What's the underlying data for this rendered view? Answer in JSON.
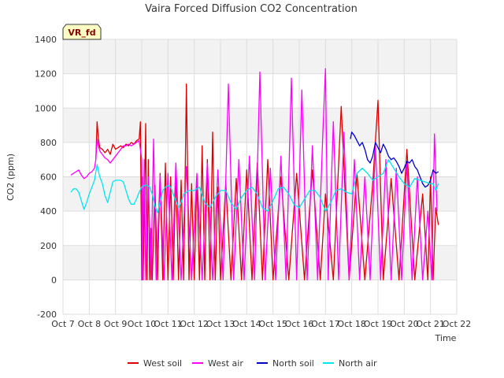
{
  "chart_data": {
    "type": "line",
    "title": "Vaira Forced Diffusion CO2 Concentration",
    "badge": "VR_fd",
    "xlabel": "Time",
    "ylabel": "CO2 (ppm)",
    "ylim": [
      -200,
      1400
    ],
    "yticks": [
      -200,
      0,
      200,
      400,
      600,
      800,
      1000,
      1200,
      1400
    ],
    "xlim": [
      7,
      22
    ],
    "xticks": [
      {
        "value": 7,
        "label": "Oct 7"
      },
      {
        "value": 8,
        "label": "Oct 8"
      },
      {
        "value": 9,
        "label": "Oct 9"
      },
      {
        "value": 10,
        "label": "Oct 10"
      },
      {
        "value": 11,
        "label": "Oct 11"
      },
      {
        "value": 12,
        "label": "Oct 12"
      },
      {
        "value": 13,
        "label": "Oct 13"
      },
      {
        "value": 14,
        "label": "Oct 14"
      },
      {
        "value": 15,
        "label": "Oct 15"
      },
      {
        "value": 16,
        "label": "Oct 16"
      },
      {
        "value": 17,
        "label": "Oct 17"
      },
      {
        "value": 18,
        "label": "Oct 18"
      },
      {
        "value": 19,
        "label": "Oct 19"
      },
      {
        "value": 20,
        "label": "Oct 20"
      },
      {
        "value": 21,
        "label": "Oct 21"
      },
      {
        "value": 22,
        "label": "Oct 22"
      }
    ],
    "grid": true,
    "legend_position": "bottom",
    "series": [
      {
        "name": "West soil",
        "color": "#dd0000",
        "x": [
          8.25,
          8.3,
          8.35,
          8.4,
          8.5,
          8.6,
          8.7,
          8.8,
          8.9,
          9.0,
          9.1,
          9.2,
          9.3,
          9.4,
          9.5,
          9.6,
          9.7,
          9.8,
          9.9,
          9.95,
          10.0,
          10.02,
          10.05,
          10.1,
          10.15,
          10.2,
          10.25,
          10.3,
          10.35,
          10.4,
          10.5,
          10.6,
          10.7,
          10.8,
          10.9,
          11.0,
          11.1,
          11.2,
          11.3,
          11.4,
          11.5,
          11.6,
          11.7,
          11.8,
          11.9,
          12.0,
          12.1,
          12.2,
          12.3,
          12.4,
          12.5,
          12.6,
          12.7,
          12.8,
          12.9,
          13.0,
          13.2,
          13.4,
          13.6,
          13.8,
          14.0,
          14.2,
          14.4,
          14.6,
          14.8,
          15.0,
          15.3,
          15.6,
          15.9,
          16.2,
          16.5,
          16.8,
          17.0,
          17.3,
          17.6,
          17.9,
          18.2,
          18.5,
          18.8,
          19.0,
          19.2,
          19.5,
          19.8,
          20.1,
          20.4,
          20.7,
          20.9,
          21.0,
          21.1,
          21.2,
          21.3
        ],
        "y": [
          700,
          920,
          820,
          770,
          760,
          740,
          760,
          730,
          790,
          760,
          770,
          780,
          770,
          790,
          780,
          800,
          790,
          810,
          820,
          920,
          0,
          600,
          0,
          400,
          910,
          0,
          700,
          0,
          300,
          0,
          550,
          0,
          620,
          0,
          680,
          0,
          600,
          0,
          640,
          0,
          580,
          0,
          1140,
          0,
          560,
          0,
          600,
          0,
          780,
          0,
          700,
          0,
          860,
          0,
          540,
          0,
          560,
          0,
          590,
          0,
          640,
          0,
          680,
          0,
          700,
          0,
          600,
          0,
          620,
          0,
          640,
          0,
          500,
          0,
          1010,
          0,
          620,
          0,
          560,
          1045,
          0,
          590,
          0,
          760,
          0,
          500,
          0,
          600,
          0,
          420,
          320
        ]
      },
      {
        "name": "West air",
        "color": "#ff00ff",
        "x": [
          7.3,
          7.4,
          7.5,
          7.6,
          7.7,
          7.8,
          7.9,
          8.0,
          8.1,
          8.2,
          8.25,
          8.3,
          8.35,
          8.4,
          8.5,
          8.6,
          8.7,
          8.8,
          8.9,
          9.0,
          9.1,
          9.2,
          9.3,
          9.4,
          9.5,
          9.6,
          9.7,
          9.8,
          9.9,
          10.0,
          10.02,
          10.1,
          10.15,
          10.25,
          10.35,
          10.45,
          10.55,
          10.7,
          10.85,
          11.0,
          11.15,
          11.3,
          11.5,
          11.7,
          11.9,
          12.1,
          12.3,
          12.5,
          12.7,
          12.9,
          13.1,
          13.3,
          13.5,
          13.7,
          13.9,
          14.1,
          14.3,
          14.5,
          14.7,
          14.9,
          15.1,
          15.3,
          15.5,
          15.7,
          15.9,
          16.1,
          16.3,
          16.5,
          16.7,
          16.9,
          17.0,
          17.1,
          17.3,
          17.5,
          17.7,
          17.9,
          18.1,
          18.3,
          18.5,
          18.7,
          18.9,
          19.1,
          19.3,
          19.5,
          19.7,
          19.9,
          20.1,
          20.3,
          20.5,
          20.7,
          20.9,
          21.05,
          21.15,
          21.25
        ],
        "y": [
          610,
          620,
          630,
          640,
          610,
          590,
          600,
          620,
          630,
          650,
          700,
          820,
          780,
          750,
          730,
          710,
          700,
          680,
          700,
          720,
          740,
          760,
          780,
          780,
          790,
          780,
          790,
          800,
          810,
          700,
          0,
          700,
          0,
          600,
          0,
          820,
          0,
          610,
          0,
          620,
          0,
          680,
          0,
          660,
          0,
          620,
          0,
          680,
          0,
          640,
          0,
          1140,
          0,
          700,
          0,
          720,
          0,
          1210,
          0,
          650,
          0,
          720,
          0,
          1175,
          0,
          1105,
          0,
          780,
          0,
          860,
          1230,
          0,
          920,
          0,
          860,
          0,
          700,
          0,
          600,
          0,
          780,
          0,
          700,
          0,
          650,
          0,
          680,
          0,
          600,
          0,
          400,
          0,
          850,
          400
        ]
      },
      {
        "name": "North soil",
        "color": "#0000cc",
        "x": [
          17.95,
          18.0,
          18.1,
          18.2,
          18.3,
          18.4,
          18.5,
          18.6,
          18.7,
          18.8,
          18.9,
          19.0,
          19.1,
          19.2,
          19.3,
          19.4,
          19.5,
          19.6,
          19.7,
          19.8,
          19.9,
          20.0,
          20.1,
          20.2,
          20.3,
          20.4,
          20.5,
          20.6,
          20.7,
          20.8,
          20.9,
          21.0,
          21.1,
          21.2,
          21.3
        ],
        "y": [
          820,
          860,
          840,
          810,
          780,
          800,
          760,
          700,
          680,
          720,
          800,
          770,
          740,
          790,
          760,
          720,
          700,
          710,
          690,
          660,
          620,
          650,
          690,
          680,
          700,
          660,
          640,
          600,
          560,
          540,
          550,
          580,
          640,
          620,
          630
        ]
      },
      {
        "name": "North air",
        "color": "#00e5ee",
        "x": [
          7.3,
          7.4,
          7.5,
          7.6,
          7.7,
          7.8,
          7.9,
          8.0,
          8.1,
          8.2,
          8.3,
          8.4,
          8.5,
          8.6,
          8.7,
          8.8,
          8.9,
          9.0,
          9.1,
          9.2,
          9.3,
          9.4,
          9.5,
          9.6,
          9.7,
          9.8,
          9.9,
          10.0,
          10.1,
          10.2,
          10.3,
          10.4,
          10.5,
          10.6,
          10.7,
          10.8,
          10.9,
          11.0,
          11.1,
          11.2,
          11.3,
          11.4,
          11.5,
          11.6,
          11.7,
          11.8,
          11.9,
          12.0,
          12.2,
          12.4,
          12.6,
          12.8,
          13.0,
          13.2,
          13.4,
          13.6,
          13.8,
          14.0,
          14.2,
          14.4,
          14.6,
          14.8,
          15.0,
          15.2,
          15.4,
          15.6,
          15.8,
          16.0,
          16.2,
          16.4,
          16.6,
          16.8,
          17.0,
          17.2,
          17.4,
          17.6,
          17.8,
          18.0,
          18.2,
          18.4,
          18.6,
          18.8,
          19.0,
          19.2,
          19.4,
          19.6,
          19.8,
          20.0,
          20.2,
          20.4,
          20.6,
          20.8,
          21.0,
          21.1,
          21.2,
          21.3
        ],
        "y": [
          510,
          530,
          530,
          510,
          460,
          410,
          450,
          500,
          540,
          580,
          670,
          600,
          560,
          490,
          450,
          510,
          570,
          580,
          580,
          580,
          570,
          520,
          470,
          440,
          440,
          470,
          510,
          540,
          550,
          550,
          540,
          500,
          430,
          390,
          450,
          520,
          540,
          550,
          540,
          500,
          460,
          420,
          450,
          500,
          510,
          520,
          520,
          520,
          540,
          450,
          420,
          480,
          520,
          520,
          450,
          410,
          480,
          520,
          540,
          500,
          420,
          400,
          460,
          530,
          540,
          500,
          440,
          420,
          470,
          520,
          520,
          480,
          400,
          450,
          520,
          530,
          510,
          500,
          620,
          650,
          620,
          580,
          600,
          620,
          700,
          650,
          600,
          560,
          540,
          590,
          580,
          570,
          560,
          560,
          520,
          560
        ]
      }
    ]
  }
}
